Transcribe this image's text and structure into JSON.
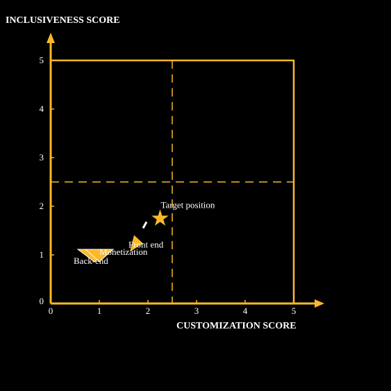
{
  "chart_data": {
    "type": "scatter",
    "title": "",
    "xlabel": "CUSTOMIZATION SCORE",
    "ylabel": "INCLUSIVENESS SCORE",
    "xlim": [
      0,
      5
    ],
    "ylim": [
      0,
      5
    ],
    "xticks": [
      "0",
      "1",
      "2",
      "3",
      "4",
      "5"
    ],
    "yticks": [
      "0",
      "1",
      "2",
      "3",
      "4",
      "5"
    ],
    "quadrant_split": {
      "x": 2.5,
      "y": 2.5
    },
    "grid": false,
    "colors": {
      "accent": "#fbb829",
      "text": "#ffffff",
      "background": "#000000",
      "arrow_white": "#ffffff"
    },
    "points": [
      {
        "label": "Back-end",
        "x": 0.9,
        "y": 1.0,
        "marker": "triangle-down"
      },
      {
        "label": "Monetization",
        "x": 1.0,
        "y": 1.0,
        "marker": "triangle-down"
      },
      {
        "label": "Front end",
        "x": 1.7,
        "y": 1.35,
        "marker": "arrow"
      },
      {
        "label": "Target position",
        "x": 2.25,
        "y": 1.75,
        "marker": "star"
      }
    ]
  }
}
